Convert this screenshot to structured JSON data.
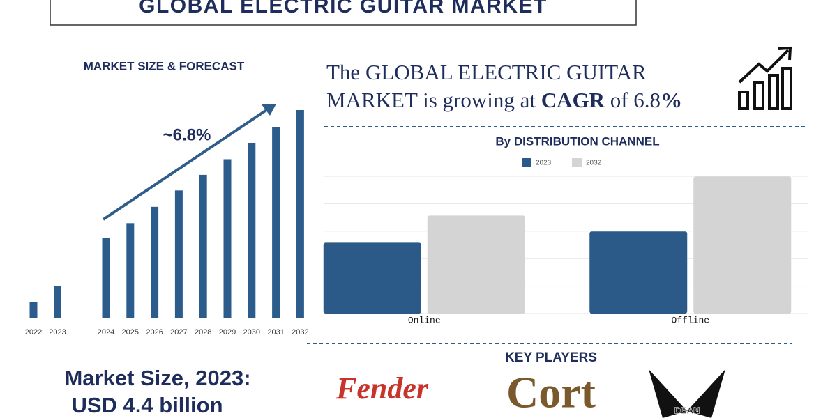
{
  "header": {
    "title": "GLOBAL ELECTRIC GUITAR MARKET"
  },
  "cagr_statement": {
    "parts": [
      "The GLOBAL  ELECTRIC GUITAR",
      "MARKET is growing at ",
      "CAGR",
      " of 6.8",
      "%"
    ]
  },
  "market_size": {
    "line1": "Market Size, 2023:",
    "line2": "USD 4.4 billion"
  },
  "key_players": {
    "title": "KEY PLAYERS",
    "logos": [
      "Fender",
      "Cort",
      "DEAN"
    ]
  },
  "chart_data": [
    {
      "type": "bar",
      "title": "MARKET SIZE & FORECAST",
      "annotation": "~6.8%",
      "categories": [
        "2022",
        "2023",
        "2024",
        "2025",
        "2026",
        "2027",
        "2028",
        "2029",
        "2030",
        "2031",
        "2032"
      ],
      "values": [
        2.2,
        4.4,
        10.8,
        12.8,
        15.0,
        17.2,
        19.3,
        21.4,
        23.6,
        25.7,
        28.0
      ],
      "color": "#2b5c8c"
    },
    {
      "type": "grouped-bar",
      "title": "By DISTRIBUTION CHANNEL",
      "categories": [
        "Online",
        "Offline"
      ],
      "series": [
        {
          "name": "2023",
          "color": "#2b5a88",
          "values": [
            2.58,
            2.99
          ]
        },
        {
          "name": "2032",
          "color": "#d4d4d4",
          "values": [
            3.57,
            4.99
          ]
        }
      ],
      "ylim": [
        0,
        5
      ],
      "yticks": [
        0,
        1,
        2,
        3,
        4,
        5
      ],
      "grid": true
    }
  ]
}
